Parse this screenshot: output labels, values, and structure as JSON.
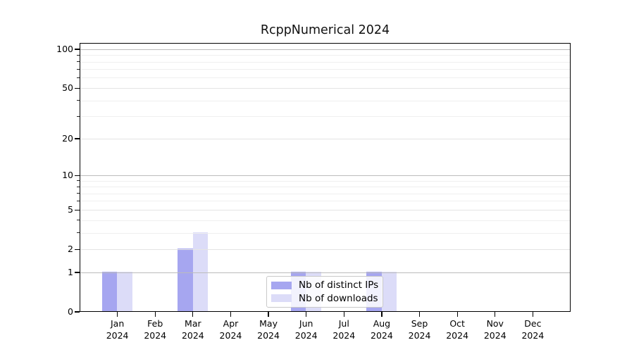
{
  "title": "RcppNumerical 2024",
  "legend": {
    "items": [
      {
        "label": "Nb of distinct IPs",
        "color": "#a6a6f0"
      },
      {
        "label": "Nb of downloads",
        "color": "#dcdcf8"
      }
    ]
  },
  "axis": {
    "y_tick_labels": [
      "0",
      "1",
      "2",
      "5",
      "10",
      "20",
      "50",
      "100"
    ],
    "x_year_label": "2024"
  },
  "chart_data": {
    "type": "bar",
    "title": "RcppNumerical 2024",
    "categories": [
      "Jan 2024",
      "Feb 2024",
      "Mar 2024",
      "Apr 2024",
      "May 2024",
      "Jun 2024",
      "Jul 2024",
      "Aug 2024",
      "Sep 2024",
      "Oct 2024",
      "Nov 2024",
      "Dec 2024"
    ],
    "months": [
      "Jan",
      "Feb",
      "Mar",
      "Apr",
      "May",
      "Jun",
      "Jul",
      "Aug",
      "Sep",
      "Oct",
      "Nov",
      "Dec"
    ],
    "year_label": "2024",
    "series": [
      {
        "name": "Nb of distinct IPs",
        "color": "#a6a6f0",
        "values": [
          1,
          0,
          2,
          0,
          0,
          1,
          0,
          1,
          0,
          0,
          0,
          0
        ]
      },
      {
        "name": "Nb of downloads",
        "color": "#dcdcf8",
        "values": [
          1,
          0,
          3,
          0,
          0,
          1,
          0,
          1,
          0,
          0,
          0,
          0
        ]
      }
    ],
    "xlabel": "",
    "ylabel": "",
    "yscale": "log10(1+x)",
    "ylim": [
      0,
      112
    ],
    "y_major_ticks": [
      0,
      1,
      2,
      5,
      10,
      20,
      50,
      100
    ],
    "y_minor_ticks": [
      3,
      4,
      6,
      7,
      8,
      9,
      30,
      40,
      60,
      70,
      80,
      90
    ],
    "grid": true,
    "grid_on_top_of_bars": true,
    "legend_position": "lower center",
    "background_color": "#ffffff"
  }
}
